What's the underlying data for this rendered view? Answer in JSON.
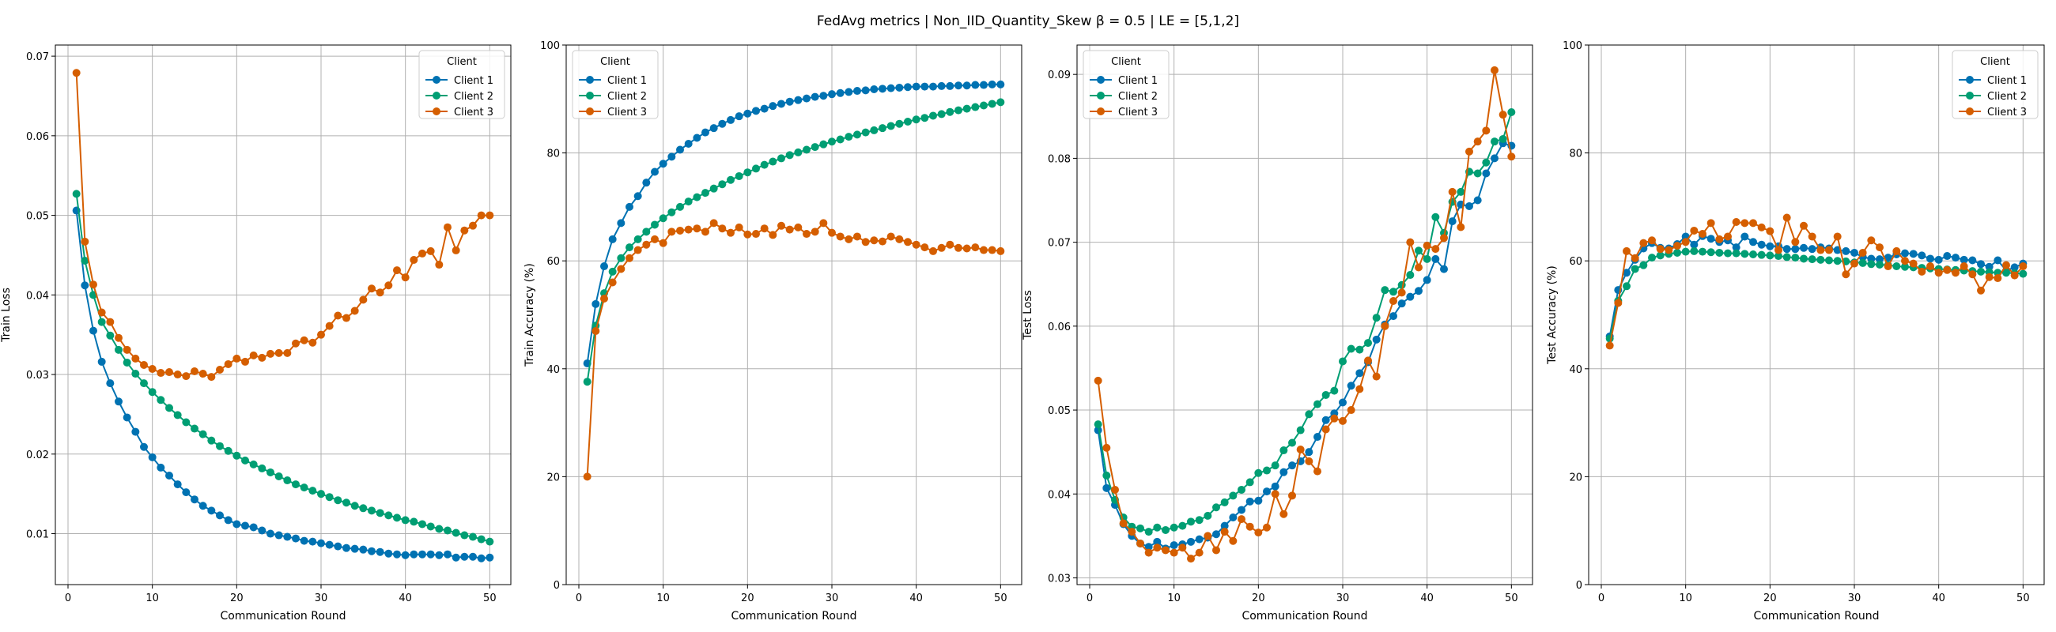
{
  "figure": {
    "suptitle": "FedAvg metrics | Non_IID_Quantity_Skew β = 0.5 | LE = [5,1,2]"
  },
  "colors": {
    "Client 1": "#0072b2",
    "Client 2": "#009e73",
    "Client 3": "#d55e00"
  },
  "chart_data": [
    {
      "type": "line",
      "xlabel": "Communication Round",
      "ylabel": "Train Loss",
      "xlim": [
        -1.5,
        52.5
      ],
      "ylim": [
        0.0036,
        0.0714
      ],
      "xticks": [
        0,
        10,
        20,
        30,
        40,
        50
      ],
      "yticks": [
        0.01,
        0.02,
        0.03,
        0.04,
        0.05,
        0.06,
        0.07
      ],
      "ytick_labels": [
        "0.01",
        "0.02",
        "0.03",
        "0.04",
        "0.05",
        "0.06",
        "0.07"
      ],
      "grid": true,
      "legend": {
        "title": "Client",
        "placement": "upper right"
      },
      "x": [
        1,
        2,
        3,
        4,
        5,
        6,
        7,
        8,
        9,
        10,
        11,
        12,
        13,
        14,
        15,
        16,
        17,
        18,
        19,
        20,
        21,
        22,
        23,
        24,
        25,
        26,
        27,
        28,
        29,
        30,
        31,
        32,
        33,
        34,
        35,
        36,
        37,
        38,
        39,
        40,
        41,
        42,
        43,
        44,
        45,
        46,
        47,
        48,
        49,
        50
      ],
      "series": [
        {
          "name": "Client 1",
          "values": [
            0.0506,
            0.0412,
            0.0355,
            0.0316,
            0.0289,
            0.0266,
            0.0246,
            0.0228,
            0.0209,
            0.0196,
            0.0183,
            0.0173,
            0.0162,
            0.0152,
            0.0143,
            0.0135,
            0.0129,
            0.0123,
            0.0117,
            0.0112,
            0.011,
            0.0108,
            0.0104,
            0.01,
            0.0098,
            0.0096,
            0.0094,
            0.0091,
            0.009,
            0.0088,
            0.0086,
            0.0084,
            0.0082,
            0.0081,
            0.008,
            0.0078,
            0.0077,
            0.0075,
            0.0074,
            0.0073,
            0.0074,
            0.0074,
            0.0074,
            0.0073,
            0.0074,
            0.007,
            0.0071,
            0.0071,
            0.0069,
            0.007
          ]
        },
        {
          "name": "Client 2",
          "values": [
            0.0527,
            0.0443,
            0.04,
            0.0366,
            0.0349,
            0.0331,
            0.0315,
            0.0301,
            0.0289,
            0.0278,
            0.0268,
            0.0258,
            0.0249,
            0.024,
            0.0232,
            0.0225,
            0.0217,
            0.021,
            0.0204,
            0.0198,
            0.0192,
            0.0187,
            0.0182,
            0.0177,
            0.0172,
            0.0167,
            0.0162,
            0.0158,
            0.0154,
            0.015,
            0.0146,
            0.0142,
            0.0139,
            0.0135,
            0.0132,
            0.0129,
            0.0126,
            0.0123,
            0.012,
            0.0117,
            0.0115,
            0.0112,
            0.0109,
            0.0106,
            0.0104,
            0.0101,
            0.0098,
            0.0096,
            0.0093,
            0.009
          ]
        },
        {
          "name": "Client 3",
          "values": [
            0.0679,
            0.0467,
            0.0413,
            0.0378,
            0.0366,
            0.0346,
            0.0331,
            0.032,
            0.0312,
            0.0307,
            0.0302,
            0.0303,
            0.03,
            0.0298,
            0.0304,
            0.0301,
            0.0297,
            0.0306,
            0.0313,
            0.032,
            0.0316,
            0.0324,
            0.0321,
            0.0326,
            0.0327,
            0.0327,
            0.0339,
            0.0343,
            0.034,
            0.035,
            0.0361,
            0.0374,
            0.0371,
            0.038,
            0.0394,
            0.0408,
            0.0403,
            0.0412,
            0.0431,
            0.0422,
            0.0444,
            0.0452,
            0.0455,
            0.0438,
            0.0485,
            0.0456,
            0.0481,
            0.0487,
            0.05,
            0.05
          ]
        }
      ]
    },
    {
      "type": "line",
      "xlabel": "Communication Round",
      "ylabel": "Train Accuracy (%)",
      "xlim": [
        -1.5,
        52.5
      ],
      "ylim": [
        0,
        100
      ],
      "xticks": [
        0,
        10,
        20,
        30,
        40,
        50
      ],
      "yticks": [
        0,
        20,
        40,
        60,
        80,
        100
      ],
      "ytick_labels": [
        "0",
        "20",
        "40",
        "60",
        "80",
        "100"
      ],
      "grid": true,
      "legend": {
        "title": "Client",
        "placement": "upper left"
      },
      "x": [
        1,
        2,
        3,
        4,
        5,
        6,
        7,
        8,
        9,
        10,
        11,
        12,
        13,
        14,
        15,
        16,
        17,
        18,
        19,
        20,
        21,
        22,
        23,
        24,
        25,
        26,
        27,
        28,
        29,
        30,
        31,
        32,
        33,
        34,
        35,
        36,
        37,
        38,
        39,
        40,
        41,
        42,
        43,
        44,
        45,
        46,
        47,
        48,
        49,
        50
      ],
      "series": [
        {
          "name": "Client 1",
          "values": [
            41,
            52,
            59,
            64,
            67,
            70,
            72,
            74.5,
            76.5,
            78,
            79.3,
            80.6,
            81.7,
            82.8,
            83.8,
            84.6,
            85.4,
            86.1,
            86.8,
            87.3,
            87.8,
            88.2,
            88.7,
            89.1,
            89.5,
            89.8,
            90.1,
            90.4,
            90.6,
            90.9,
            91.1,
            91.3,
            91.5,
            91.6,
            91.8,
            91.9,
            92.0,
            92.1,
            92.2,
            92.3,
            92.3,
            92.3,
            92.4,
            92.4,
            92.5,
            92.5,
            92.6,
            92.6,
            92.7,
            92.7
          ]
        },
        {
          "name": "Client 2",
          "values": [
            37.6,
            48,
            54,
            58,
            60.5,
            62.5,
            64,
            65.4,
            66.7,
            67.9,
            69,
            70,
            71,
            71.8,
            72.6,
            73.4,
            74.2,
            75,
            75.7,
            76.4,
            77.1,
            77.8,
            78.4,
            79,
            79.6,
            80.1,
            80.6,
            81.1,
            81.6,
            82.1,
            82.5,
            83,
            83.4,
            83.8,
            84.2,
            84.6,
            85,
            85.4,
            85.8,
            86.2,
            86.5,
            86.9,
            87.2,
            87.6,
            87.9,
            88.2,
            88.5,
            88.8,
            89.1,
            89.4
          ]
        },
        {
          "name": "Client 3",
          "values": [
            20,
            47,
            53,
            56,
            58.5,
            60.5,
            62,
            63,
            64,
            63.3,
            65.4,
            65.6,
            65.8,
            66,
            65.4,
            67,
            66,
            65.2,
            66.2,
            64.9,
            65,
            66,
            64.8,
            66.5,
            65.8,
            66.2,
            65,
            65.4,
            67,
            65.2,
            64.5,
            64,
            64.5,
            63.5,
            63.8,
            63.6,
            64.5,
            64,
            63.5,
            63,
            62.5,
            61.8,
            62.4,
            63,
            62.4,
            62.3,
            62.5,
            62,
            62,
            61.8
          ]
        }
      ]
    },
    {
      "type": "line",
      "xlabel": "Communication Round",
      "ylabel": "Test Loss",
      "xlim": [
        -1.5,
        52.5
      ],
      "ylim": [
        0.0292,
        0.0935
      ],
      "xticks": [
        0,
        10,
        20,
        30,
        40,
        50
      ],
      "yticks": [
        0.03,
        0.04,
        0.05,
        0.06,
        0.07,
        0.08,
        0.09
      ],
      "ytick_labels": [
        "0.03",
        "0.04",
        "0.05",
        "0.06",
        "0.07",
        "0.08",
        "0.09"
      ],
      "grid": true,
      "legend": {
        "title": "Client",
        "placement": "upper left"
      },
      "x": [
        1,
        2,
        3,
        4,
        5,
        6,
        7,
        8,
        9,
        10,
        11,
        12,
        13,
        14,
        15,
        16,
        17,
        18,
        19,
        20,
        21,
        22,
        23,
        24,
        25,
        26,
        27,
        28,
        29,
        30,
        31,
        32,
        33,
        34,
        35,
        36,
        37,
        38,
        39,
        40,
        41,
        42,
        43,
        44,
        45,
        46,
        47,
        48,
        49,
        50
      ],
      "series": [
        {
          "name": "Client 1",
          "values": [
            0.0476,
            0.0407,
            0.0387,
            0.0364,
            0.035,
            0.0341,
            0.0337,
            0.0343,
            0.0335,
            0.0339,
            0.034,
            0.0343,
            0.0346,
            0.0348,
            0.0352,
            0.0362,
            0.0372,
            0.0381,
            0.0391,
            0.0392,
            0.0403,
            0.0409,
            0.0426,
            0.0434,
            0.0439,
            0.045,
            0.0468,
            0.0488,
            0.0496,
            0.0509,
            0.0529,
            0.0544,
            0.0557,
            0.0584,
            0.0602,
            0.0612,
            0.0627,
            0.0635,
            0.0642,
            0.0655,
            0.068,
            0.0668,
            0.0725,
            0.0745,
            0.0743,
            0.075,
            0.0782,
            0.08,
            0.0818,
            0.0815
          ]
        },
        {
          "name": "Client 2",
          "values": [
            0.0483,
            0.0422,
            0.0393,
            0.0372,
            0.0361,
            0.0359,
            0.0355,
            0.036,
            0.0357,
            0.036,
            0.0362,
            0.0367,
            0.0369,
            0.0374,
            0.0384,
            0.039,
            0.0398,
            0.0405,
            0.0414,
            0.0425,
            0.0428,
            0.0434,
            0.0452,
            0.0461,
            0.0476,
            0.0495,
            0.0507,
            0.0518,
            0.0523,
            0.0558,
            0.0573,
            0.0572,
            0.058,
            0.061,
            0.0643,
            0.0641,
            0.0649,
            0.0661,
            0.069,
            0.068,
            0.073,
            0.0711,
            0.0748,
            0.076,
            0.0784,
            0.0782,
            0.0795,
            0.082,
            0.0823,
            0.0855
          ]
        },
        {
          "name": "Client 3",
          "values": [
            0.0535,
            0.0455,
            0.0405,
            0.0365,
            0.0355,
            0.0341,
            0.033,
            0.0336,
            0.0333,
            0.033,
            0.0336,
            0.0323,
            0.033,
            0.035,
            0.0333,
            0.0355,
            0.0344,
            0.037,
            0.0361,
            0.0354,
            0.036,
            0.04,
            0.0376,
            0.0398,
            0.0453,
            0.0439,
            0.0427,
            0.0477,
            0.049,
            0.0487,
            0.05,
            0.0525,
            0.0559,
            0.054,
            0.06,
            0.063,
            0.064,
            0.07,
            0.067,
            0.0696,
            0.0692,
            0.0705,
            0.076,
            0.0718,
            0.0808,
            0.082,
            0.0833,
            0.0905,
            0.0852,
            0.0802
          ]
        }
      ]
    },
    {
      "type": "line",
      "xlabel": "Communication Round",
      "ylabel": "Test Accuracy (%)",
      "xlim": [
        -1.5,
        52.5
      ],
      "ylim": [
        0,
        100
      ],
      "xticks": [
        0,
        10,
        20,
        30,
        40,
        50
      ],
      "yticks": [
        0,
        20,
        40,
        60,
        80,
        100
      ],
      "ytick_labels": [
        "0",
        "20",
        "40",
        "60",
        "80",
        "100"
      ],
      "grid": true,
      "legend": {
        "title": "Client",
        "placement": "upper right"
      },
      "x": [
        1,
        2,
        3,
        4,
        5,
        6,
        7,
        8,
        9,
        10,
        11,
        12,
        13,
        14,
        15,
        16,
        17,
        18,
        19,
        20,
        21,
        22,
        23,
        24,
        25,
        26,
        27,
        28,
        29,
        30,
        31,
        32,
        33,
        34,
        35,
        36,
        37,
        38,
        39,
        40,
        41,
        42,
        43,
        44,
        45,
        46,
        47,
        48,
        49,
        50
      ],
      "series": [
        {
          "name": "Client 1",
          "values": [
            46,
            54.6,
            57.8,
            60.2,
            62.3,
            63.3,
            62.4,
            62.3,
            63.1,
            64.5,
            63,
            64.6,
            64.1,
            63.5,
            63.8,
            62.5,
            64.5,
            63.5,
            63,
            62.7,
            62.7,
            62.2,
            62.2,
            62.4,
            62.2,
            62.5,
            62.3,
            62,
            61.8,
            61.5,
            60.7,
            60.4,
            60.3,
            60.6,
            61.2,
            61.4,
            61.3,
            61,
            60.4,
            60.2,
            60.9,
            60.6,
            60.2,
            60.1,
            59.4,
            58.9,
            60.1,
            58.2,
            58.8,
            59.5
          ]
        },
        {
          "name": "Client 2",
          "values": [
            45.6,
            52.6,
            55.3,
            58.5,
            59.2,
            60.6,
            61,
            61.3,
            61.5,
            61.7,
            61.8,
            61.7,
            61.6,
            61.5,
            61.4,
            61.4,
            61.3,
            61.2,
            61.1,
            61,
            60.9,
            60.7,
            60.6,
            60.4,
            60.3,
            60.2,
            60.1,
            60,
            59.9,
            59.7,
            59.6,
            59.4,
            59.3,
            59.2,
            59,
            58.9,
            58.8,
            58.7,
            58.6,
            58.5,
            58.4,
            58.3,
            58.2,
            58.1,
            58,
            57.9,
            57.8,
            57.8,
            57.7,
            57.6
          ]
        },
        {
          "name": "Client 3",
          "values": [
            44.3,
            52.2,
            61.8,
            60.5,
            63.3,
            63.8,
            62.2,
            62,
            62.8,
            63.5,
            65.6,
            65,
            67,
            64,
            64.5,
            67.2,
            67,
            67,
            66.2,
            65.5,
            62,
            68,
            63.5,
            66.5,
            64.5,
            62,
            62,
            64.5,
            57.5,
            59.5,
            61.5,
            63.8,
            62.5,
            59,
            61.8,
            60,
            59.5,
            58,
            59,
            57.8,
            58.3,
            57.8,
            59,
            57.5,
            54.5,
            57,
            56.8,
            59.2,
            57.3,
            59
          ]
        }
      ]
    }
  ]
}
